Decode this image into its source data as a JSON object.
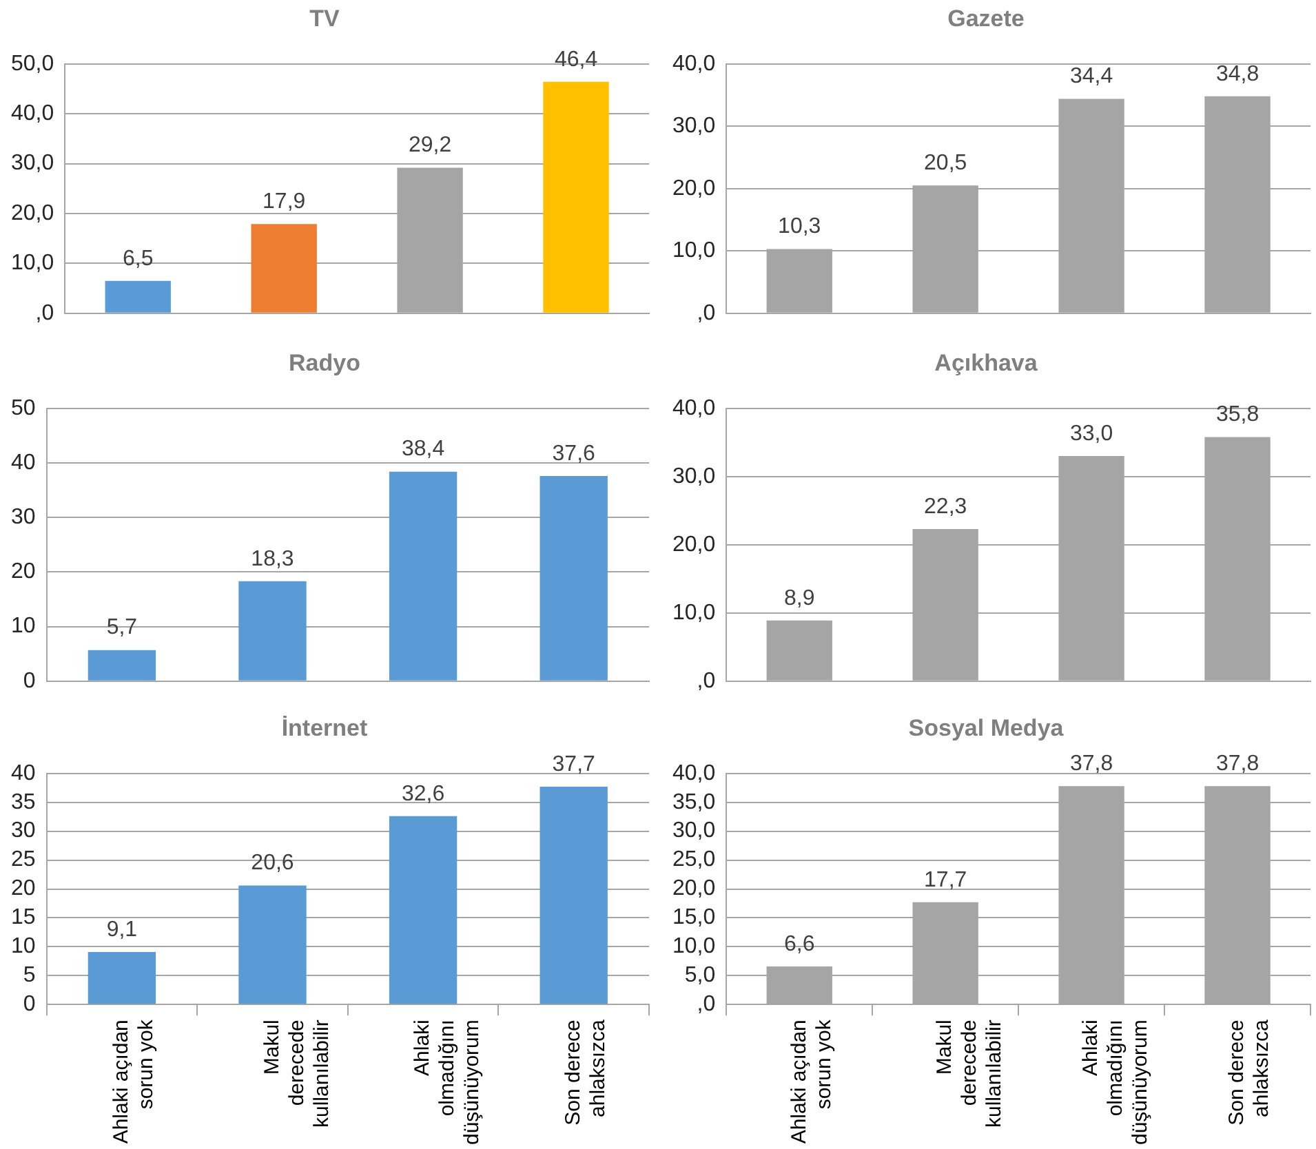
{
  "chart_data": [
    {
      "type": "bar",
      "title": "TV",
      "categories": [
        null,
        null,
        null,
        null
      ],
      "values": [
        6.5,
        17.9,
        29.2,
        46.4
      ],
      "colors": [
        "#5b9bd5",
        "#ed7d31",
        "#a5a5a5",
        "#ffc000"
      ],
      "value_labels": [
        "6,5",
        "17,9",
        "29,2",
        "46,4"
      ],
      "ylim": [
        0,
        50
      ],
      "yticks": [
        {
          "value": 0,
          "label": ",0"
        },
        {
          "value": 10,
          "label": "10,0"
        },
        {
          "value": 20,
          "label": "20,0"
        },
        {
          "value": 30,
          "label": "30,0"
        },
        {
          "value": 40,
          "label": "40,0"
        },
        {
          "value": 50,
          "label": "50,0"
        }
      ],
      "grid": "y",
      "tick_labels": "y"
    },
    {
      "type": "bar",
      "title": "Gazete",
      "categories": [
        null,
        null,
        null,
        null
      ],
      "values": [
        10.3,
        20.5,
        34.4,
        34.8
      ],
      "color": "#a5a5a5",
      "value_labels": [
        "10,3",
        "20,5",
        "34,4",
        "34,8"
      ],
      "ylim": [
        0,
        40
      ],
      "yticks": [
        {
          "value": 0,
          "label": ",0"
        },
        {
          "value": 10,
          "label": "10,0"
        },
        {
          "value": 20,
          "label": "20,0"
        },
        {
          "value": 30,
          "label": "30,0"
        },
        {
          "value": 40,
          "label": "40,0"
        }
      ],
      "grid": "y",
      "tick_labels": "y"
    },
    {
      "type": "bar",
      "title": "Radyo",
      "categories": [
        null,
        null,
        null,
        null
      ],
      "values": [
        5.7,
        18.3,
        38.4,
        37.6
      ],
      "color": "#5b9bd5",
      "value_labels": [
        "5,7",
        "18,3",
        "38,4",
        "37,6"
      ],
      "ylim": [
        0,
        50
      ],
      "yticks": [
        0,
        10,
        20,
        30,
        40,
        50
      ],
      "grid": "y",
      "tick_labels": "y"
    },
    {
      "type": "bar",
      "title": "Açıkhava",
      "categories": [
        null,
        null,
        null,
        null
      ],
      "values": [
        8.9,
        22.3,
        33.0,
        35.8
      ],
      "color": "#a5a5a5",
      "value_labels": [
        "8,9",
        "22,3",
        "33,0",
        "35,8"
      ],
      "ylim": [
        0,
        40
      ],
      "yticks": [
        {
          "value": 0,
          "label": ",0"
        },
        {
          "value": 10,
          "label": "10,0"
        },
        {
          "value": 20,
          "label": "20,0"
        },
        {
          "value": 30,
          "label": "30,0"
        },
        {
          "value": 40,
          "label": "40,0"
        }
      ],
      "grid": "y",
      "tick_labels": "y"
    },
    {
      "type": "bar",
      "title": "İnternet",
      "categories": [
        "Ahlaki açıdan sorun yok",
        "Makul derecede kullanılabilir",
        "Ahlaki olmadığını düşünüyorum",
        "Son derece ahlaksızca"
      ],
      "values": [
        9.1,
        20.6,
        32.6,
        37.7
      ],
      "color": "#5b9bd5",
      "value_labels": [
        "9,1",
        "20,6",
        "32,6",
        "37,7"
      ],
      "ylim": [
        0,
        40
      ],
      "yticks": [
        0,
        5,
        10,
        15,
        20,
        25,
        30,
        35,
        40
      ],
      "grid": "y"
    },
    {
      "type": "bar",
      "title": "Sosyal Medya",
      "categories": [
        "Ahlaki açıdan sorun yok",
        "Makul derecede kullanılabilir",
        "Ahlaki olmadığını düşünüyorum",
        "Son derece ahlaksızca"
      ],
      "values": [
        6.6,
        17.7,
        37.8,
        37.8
      ],
      "color": "#a5a5a5",
      "value_labels": [
        "6,6",
        "17,7",
        "37,8",
        "37,8"
      ],
      "ylim": [
        0,
        40
      ],
      "yticks": [
        {
          "value": 0,
          "label": ",0"
        },
        {
          "value": 5,
          "label": "5,0"
        },
        {
          "value": 10,
          "label": "10,0"
        },
        {
          "value": 15,
          "label": "15,0"
        },
        {
          "value": 20,
          "label": "20,0"
        },
        {
          "value": 25,
          "label": "25,0"
        },
        {
          "value": 30,
          "label": "30,0"
        },
        {
          "value": 35,
          "label": "35,0"
        },
        {
          "value": 40,
          "label": "40,0"
        }
      ],
      "grid": "y"
    }
  ]
}
